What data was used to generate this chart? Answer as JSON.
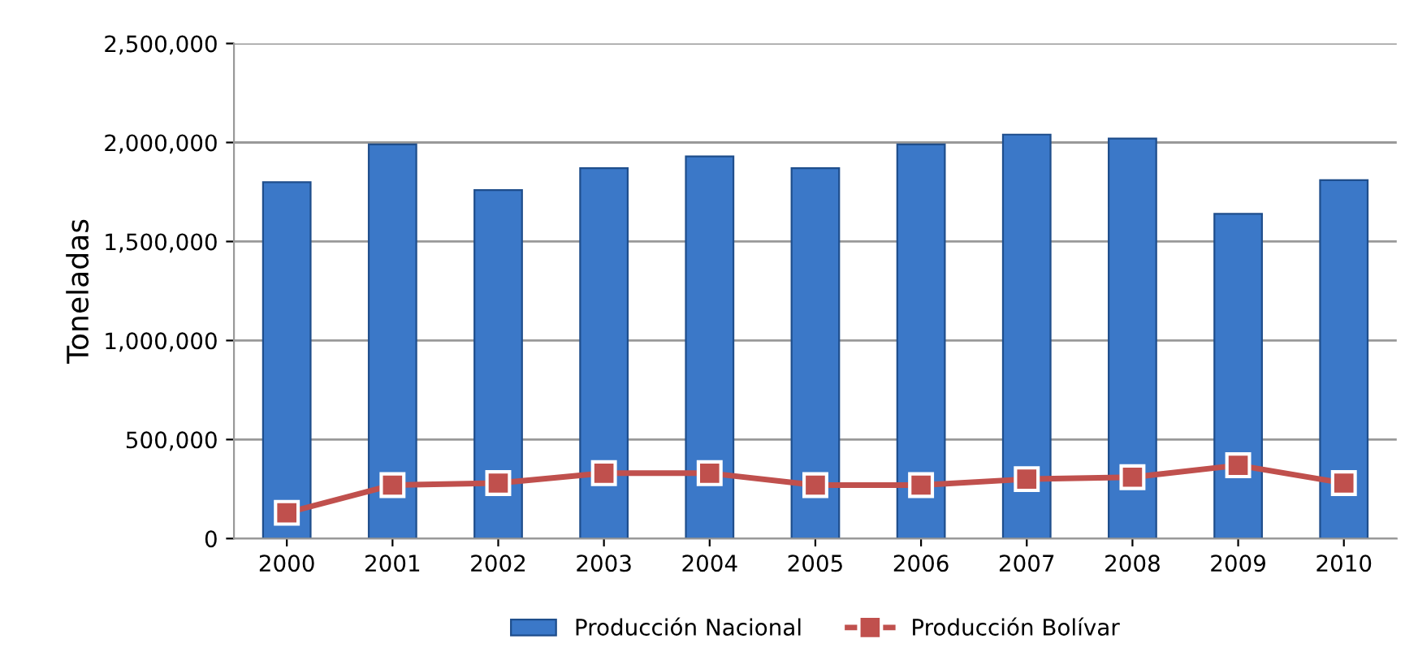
{
  "chart_data": {
    "type": "bar",
    "ylabel": "Toneladas",
    "categories": [
      "2000",
      "2001",
      "2002",
      "2003",
      "2004",
      "2005",
      "2006",
      "2007",
      "2008",
      "2009",
      "2010"
    ],
    "series": [
      {
        "name": "Producción Nacional",
        "color": "#3b78c8",
        "values": [
          1800000,
          1990000,
          1760000,
          1870000,
          1930000,
          1870000,
          1990000,
          2040000,
          2020000,
          1640000,
          1810000
        ]
      },
      {
        "name": "Producción Bolívar",
        "type": "line",
        "color": "#c0504d",
        "marker": "square",
        "values": [
          130000,
          270000,
          280000,
          330000,
          330000,
          270000,
          270000,
          300000,
          310000,
          370000,
          280000
        ]
      }
    ],
    "ylim": [
      0,
      2500000
    ],
    "yticks": [
      {
        "value": 0,
        "label": "0"
      },
      {
        "value": 500000,
        "label": "500,000"
      },
      {
        "value": 1000000,
        "label": "1,000,000"
      },
      {
        "value": 1500000,
        "label": "1,500,000"
      },
      {
        "value": 2000000,
        "label": "2,000,000"
      },
      {
        "value": 2500000,
        "label": "2,500,000"
      }
    ],
    "grid": "y",
    "legend": "bottom"
  }
}
